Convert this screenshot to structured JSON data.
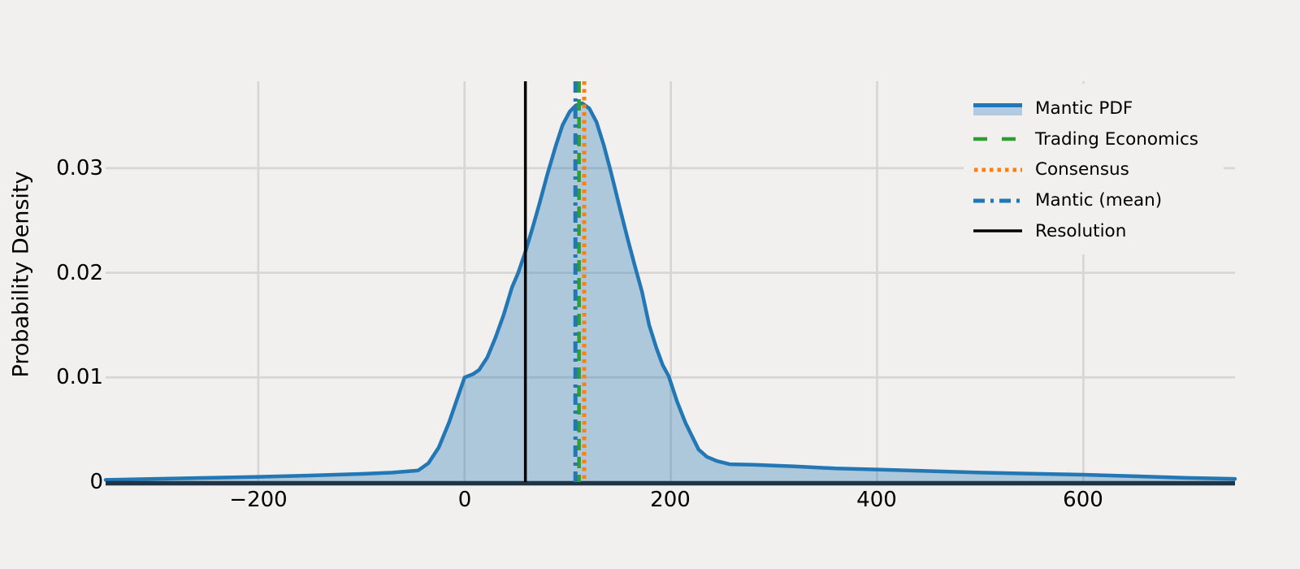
{
  "figure": {
    "background": "#f1f0ee"
  },
  "chart_data": {
    "type": "area",
    "title": "",
    "xlabel": "",
    "ylabel": "Probability Density",
    "xlim": [
      -348,
      747
    ],
    "ylim": [
      0,
      0.0383
    ],
    "grid": true,
    "legend_position": "upper right",
    "x_ticks": [
      {
        "value": -200,
        "label": "−200"
      },
      {
        "value": 0,
        "label": "0"
      },
      {
        "value": 200,
        "label": "200"
      },
      {
        "value": 400,
        "label": "400"
      },
      {
        "value": 600,
        "label": "600"
      }
    ],
    "y_ticks": [
      {
        "value": 0,
        "label": "0"
      },
      {
        "value": 0.01,
        "label": "0.01"
      },
      {
        "value": 0.02,
        "label": "0.02"
      },
      {
        "value": 0.03,
        "label": "0.03"
      }
    ],
    "series": [
      {
        "name": "Mantic PDF",
        "type": "area",
        "color": "#2277b4",
        "fill": "rgba(34,119,180,0.33)",
        "swatch_fill": "#b3cbe2",
        "points": [
          [
            -348,
            0.0002
          ],
          [
            -300,
            0.0003
          ],
          [
            -250,
            0.0004
          ],
          [
            -200,
            0.0005
          ],
          [
            -150,
            0.00062
          ],
          [
            -100,
            0.00078
          ],
          [
            -70,
            0.0009
          ],
          [
            -45,
            0.0011
          ],
          [
            -35,
            0.0018
          ],
          [
            -25,
            0.0033
          ],
          [
            -15,
            0.0057
          ],
          [
            -7,
            0.008
          ],
          [
            0,
            0.01
          ],
          [
            8,
            0.0103
          ],
          [
            14,
            0.0107
          ],
          [
            22,
            0.0119
          ],
          [
            30,
            0.0138
          ],
          [
            38,
            0.016
          ],
          [
            46,
            0.0186
          ],
          [
            52,
            0.02
          ],
          [
            59,
            0.022
          ],
          [
            66,
            0.0243
          ],
          [
            72,
            0.0264
          ],
          [
            80,
            0.0293
          ],
          [
            88,
            0.032
          ],
          [
            95,
            0.0341
          ],
          [
            102,
            0.0354
          ],
          [
            108,
            0.036
          ],
          [
            114,
            0.0362
          ],
          [
            121,
            0.0357
          ],
          [
            128,
            0.0344
          ],
          [
            135,
            0.0322
          ],
          [
            142,
            0.0296
          ],
          [
            150,
            0.0264
          ],
          [
            158,
            0.0233
          ],
          [
            165,
            0.0207
          ],
          [
            172,
            0.0182
          ],
          [
            179,
            0.015
          ],
          [
            186,
            0.0128
          ],
          [
            192,
            0.0112
          ],
          [
            198,
            0.0101
          ],
          [
            206,
            0.0077
          ],
          [
            214,
            0.0057
          ],
          [
            220,
            0.0045
          ],
          [
            227,
            0.0031
          ],
          [
            235,
            0.0024
          ],
          [
            245,
            0.002
          ],
          [
            257,
            0.0017
          ],
          [
            280,
            0.00165
          ],
          [
            320,
            0.0015
          ],
          [
            360,
            0.0013
          ],
          [
            400,
            0.0012
          ],
          [
            450,
            0.00105
          ],
          [
            500,
            0.0009
          ],
          [
            550,
            0.0008
          ],
          [
            600,
            0.0007
          ],
          [
            650,
            0.00055
          ],
          [
            700,
            0.0004
          ],
          [
            747,
            0.0003
          ]
        ]
      },
      {
        "name": "Trading Economics",
        "type": "vline",
        "x": 111,
        "color": "#2ca02c",
        "dash": "dashed"
      },
      {
        "name": "Consensus",
        "type": "vline",
        "x": 116,
        "color": "#ff7f0e",
        "dash": "dotted"
      },
      {
        "name": "Mantic (mean)",
        "type": "vline",
        "x": 107.5,
        "color": "#2277b4",
        "dash": "dashdot"
      },
      {
        "name": "Resolution",
        "type": "vline",
        "x": 59,
        "color": "#000000",
        "dash": "solid"
      }
    ]
  },
  "axes": {
    "grid_color": "#d7d6d4",
    "spine_color": "#203448",
    "tick_color": "#000000"
  },
  "legend": {
    "items": [
      {
        "label": "Mantic PDF"
      },
      {
        "label": "Trading Economics"
      },
      {
        "label": "Consensus"
      },
      {
        "label": "Mantic (mean)"
      },
      {
        "label": "Resolution"
      }
    ]
  }
}
